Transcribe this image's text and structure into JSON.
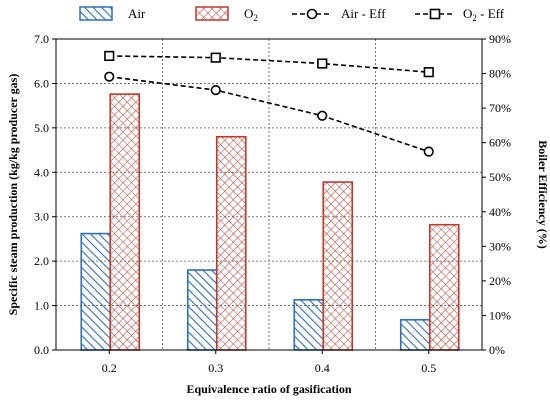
{
  "chart_data": {
    "type": "bar",
    "xlabel": "Equivalence ratio of gasification",
    "ylabel": "Specific steam production (kg/kg producer gas)",
    "y2label": "Boiler Efficiency (%)",
    "categories": [
      "0.2",
      "0.3",
      "0.4",
      "0.5"
    ],
    "ylim": [
      0,
      7
    ],
    "y2lim": [
      0,
      90
    ],
    "yticks": [
      "0.0",
      "1.0",
      "2.0",
      "3.0",
      "4.0",
      "5.0",
      "6.0",
      "7.0"
    ],
    "y2ticks": [
      "0%",
      "10%",
      "20%",
      "30%",
      "40%",
      "50%",
      "60%",
      "70%",
      "80%",
      "90%"
    ],
    "grid": true,
    "legend_position": "top",
    "series": [
      {
        "name": "Air",
        "kind": "bar",
        "axis": "left",
        "values": [
          2.62,
          1.8,
          1.13,
          0.68
        ],
        "color": "#2e6fc0",
        "pattern": "diagonal-hatch"
      },
      {
        "name": "O2",
        "kind": "bar",
        "axis": "left",
        "values": [
          5.76,
          4.8,
          3.78,
          2.82
        ],
        "color": "#c0392b",
        "pattern": "cross-hatch"
      },
      {
        "name": "Air - Eff",
        "kind": "line",
        "axis": "right",
        "values": [
          79.1,
          75.2,
          67.8,
          57.4
        ],
        "color": "#000000",
        "marker": "circle",
        "dash": "dashed"
      },
      {
        "name": "O2 - Eff",
        "kind": "line",
        "axis": "right",
        "values": [
          85.1,
          84.6,
          82.9,
          80.4
        ],
        "color": "#000000",
        "marker": "square",
        "dash": "dashed"
      }
    ]
  }
}
